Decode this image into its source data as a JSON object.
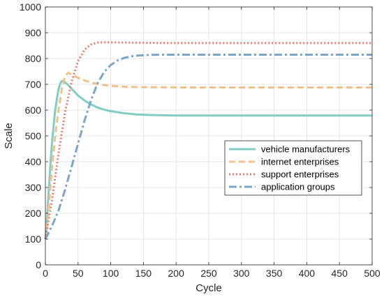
{
  "chart_data": {
    "type": "line",
    "xlabel": "Cycle",
    "ylabel": "Scale",
    "xlim": [
      0,
      500
    ],
    "ylim": [
      0,
      1000
    ],
    "xticks": [
      "0",
      "50",
      "100",
      "150",
      "200",
      "250",
      "300",
      "350",
      "400",
      "450",
      "500"
    ],
    "yticks": [
      "0",
      "100",
      "200",
      "300",
      "400",
      "500",
      "600",
      "700",
      "800",
      "900",
      "1000"
    ],
    "grid": true,
    "legend_position": "center-right",
    "series": [
      {
        "name": "vehicle manufacturers",
        "color": "#7fcdc4",
        "style": "solid",
        "x": [
          0,
          3,
          5,
          8,
          10,
          13,
          15,
          18,
          20,
          23,
          25,
          28,
          30,
          35,
          40,
          45,
          50,
          60,
          70,
          80,
          90,
          100,
          120,
          140,
          160,
          180,
          200,
          250,
          300,
          350,
          400,
          450,
          500
        ],
        "y": [
          100,
          200,
          280,
          400,
          470,
          550,
          600,
          650,
          680,
          705,
          713,
          712,
          708,
          697,
          683,
          670,
          657,
          637,
          622,
          610,
          602,
          596,
          588,
          583,
          581,
          580,
          579,
          579,
          579,
          579,
          579,
          579,
          579
        ]
      },
      {
        "name": "internet enterprises",
        "color": "#f2c18b",
        "style": "dashed",
        "x": [
          0,
          5,
          10,
          15,
          20,
          25,
          30,
          35,
          40,
          50,
          60,
          70,
          80,
          90,
          100,
          120,
          150,
          200,
          250,
          300,
          350,
          400,
          450,
          500
        ],
        "y": [
          100,
          220,
          370,
          500,
          600,
          680,
          730,
          745,
          738,
          725,
          715,
          707,
          701,
          697,
          694,
          691,
          689,
          688,
          688,
          688,
          688,
          688,
          688,
          688
        ]
      },
      {
        "name": "support enterprises",
        "color": "#eb7b6d",
        "style": "dotted",
        "x": [
          0,
          10,
          20,
          30,
          40,
          50,
          60,
          70,
          80,
          90,
          100,
          120,
          150,
          200,
          250,
          300,
          350,
          400,
          450,
          500
        ],
        "y": [
          100,
          250,
          430,
          590,
          710,
          790,
          835,
          855,
          862,
          863,
          863,
          862,
          861,
          860,
          860,
          860,
          860,
          860,
          860,
          860
        ]
      },
      {
        "name": "application groups",
        "color": "#7ba6ca",
        "style": "dashdot",
        "x": [
          0,
          10,
          20,
          30,
          40,
          50,
          60,
          70,
          80,
          90,
          100,
          110,
          120,
          130,
          140,
          150,
          160,
          180,
          200,
          250,
          300,
          350,
          400,
          450,
          500
        ],
        "y": [
          100,
          150,
          210,
          290,
          380,
          470,
          560,
          640,
          705,
          748,
          775,
          792,
          802,
          808,
          811,
          813,
          814,
          815,
          815,
          815,
          815,
          815,
          815,
          815,
          815
        ]
      }
    ]
  }
}
